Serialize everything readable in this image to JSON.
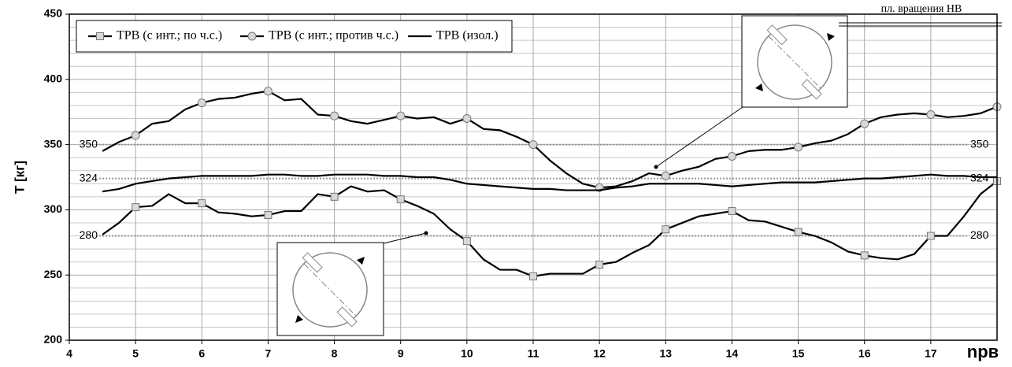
{
  "chart_data": {
    "type": "line",
    "ylabel": "T [кг]",
    "xlabel": "nрв",
    "annotation": "пл. вращения НВ",
    "xlim": [
      4,
      18
    ],
    "xticks": [
      4,
      5,
      6,
      7,
      8,
      9,
      10,
      11,
      12,
      13,
      14,
      15,
      16,
      17
    ],
    "ylim": [
      200,
      450
    ],
    "yticks": [
      200,
      250,
      300,
      350,
      400,
      450
    ],
    "y_minor_ticks": [
      210,
      220,
      230,
      240,
      260,
      270,
      280,
      290,
      310,
      320,
      330,
      340,
      360,
      370,
      380,
      390,
      410,
      420,
      430,
      440
    ],
    "reference_lines": [
      350,
      324,
      280
    ],
    "grid": true,
    "legend": "upper left",
    "x": [
      4.5,
      4.75,
      5,
      5.25,
      5.5,
      5.75,
      6,
      6.25,
      6.5,
      6.75,
      7,
      7.25,
      7.5,
      7.75,
      8,
      8.25,
      8.5,
      8.75,
      9,
      9.25,
      9.5,
      9.75,
      10,
      10.25,
      10.5,
      10.75,
      11,
      11.25,
      11.5,
      11.75,
      12,
      12.25,
      12.5,
      12.75,
      13,
      13.25,
      13.5,
      13.75,
      14,
      14.25,
      14.5,
      14.75,
      15,
      15.25,
      15.5,
      15.75,
      16,
      16.25,
      16.5,
      16.75,
      17,
      17.25,
      17.5,
      17.75,
      18
    ],
    "series": [
      {
        "name": "TРВ (с инт.; по ч.с.)",
        "color": "#000000",
        "marker": "square",
        "values": [
          281,
          290,
          302,
          303,
          312,
          305,
          305,
          298,
          297,
          295,
          296,
          299,
          299,
          312,
          310,
          318,
          314,
          315,
          308,
          303,
          297,
          285,
          276,
          262,
          254,
          254,
          249,
          251,
          251,
          251,
          258,
          260,
          267,
          273,
          285,
          290,
          295,
          297,
          299,
          292,
          291,
          287,
          283,
          280,
          275,
          268,
          265,
          263,
          262,
          266,
          280,
          280,
          295,
          312,
          322
        ]
      },
      {
        "name": "TРВ (с инт.; против ч.с.)",
        "color": "#000000",
        "marker": "circle",
        "values": [
          345,
          352,
          357,
          366,
          368,
          377,
          382,
          385,
          386,
          389,
          391,
          384,
          385,
          373,
          372,
          368,
          366,
          369,
          372,
          370,
          371,
          366,
          370,
          362,
          361,
          356,
          350,
          338,
          328,
          320,
          317,
          318,
          322,
          328,
          326,
          330,
          333,
          339,
          341,
          345,
          346,
          346,
          348,
          351,
          353,
          358,
          366,
          371,
          373,
          374,
          373,
          371,
          372,
          374,
          379
        ]
      },
      {
        "name": "TРВ (изол.)",
        "color": "#000000",
        "marker": "none",
        "values": [
          314,
          316,
          320,
          322,
          324,
          325,
          326,
          326,
          326,
          326,
          327,
          327,
          326,
          326,
          327,
          327,
          327,
          326,
          326,
          325,
          325,
          323,
          320,
          319,
          318,
          317,
          316,
          316,
          315,
          315,
          315,
          317,
          318,
          320,
          320,
          320,
          320,
          319,
          318,
          319,
          320,
          321,
          321,
          321,
          322,
          323,
          324,
          324,
          325,
          326,
          327,
          326,
          326,
          325,
          325
        ]
      }
    ]
  }
}
